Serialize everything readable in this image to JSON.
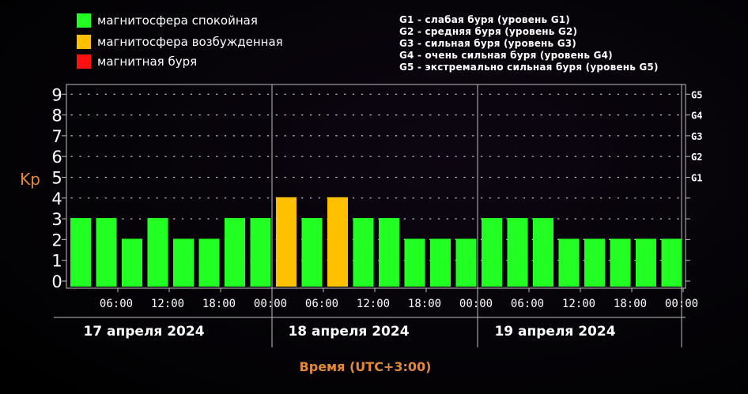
{
  "legend": [
    {
      "label": "магнитосфера спокойная",
      "color": "#22ff22"
    },
    {
      "label": "магнитосфера возбужденная",
      "color": "#ffc000"
    },
    {
      "label": "магнитная буря",
      "color": "#ff1010"
    }
  ],
  "storm_levels": [
    "G1 - слабая буря (уровень G1)",
    "G2 - средняя буря (уровень G2)",
    "G3 - сильная буря (уровень G3)",
    "G4 - очень сильная буря (уровень G4)",
    "G5 - экстремально сильная буря (уровень G5)"
  ],
  "chart_data": {
    "type": "bar",
    "ylabel": "Kp",
    "xlabel": "Время (UTC+3:00)",
    "ylim": [
      0,
      9
    ],
    "yticks": [
      "0",
      "1",
      "2",
      "3",
      "4",
      "5",
      "6",
      "7",
      "8",
      "9"
    ],
    "right_ticks": [
      {
        "label": "G1",
        "kp": 5
      },
      {
        "label": "G2",
        "kp": 6
      },
      {
        "label": "G3",
        "kp": 7
      },
      {
        "label": "G4",
        "kp": 8
      },
      {
        "label": "G5",
        "kp": 9
      }
    ],
    "xtick_labels": [
      "06:00",
      "12:00",
      "18:00",
      "00:00",
      "06:00",
      "12:00",
      "18:00",
      "00:00",
      "06:00",
      "12:00",
      "18:00",
      "00:00"
    ],
    "days": [
      "17 апреля 2024",
      "18 апреля 2024",
      "19 апреля 2024"
    ],
    "values": [
      3,
      3,
      2,
      3,
      2,
      2,
      3,
      3,
      4,
      3,
      4,
      3,
      3,
      2,
      2,
      2,
      3,
      3,
      3,
      2,
      2,
      2,
      2,
      2
    ],
    "colors": {
      "quiet": "#22ff22",
      "active": "#ffc000",
      "storm": "#ff1010"
    },
    "grid": true
  }
}
